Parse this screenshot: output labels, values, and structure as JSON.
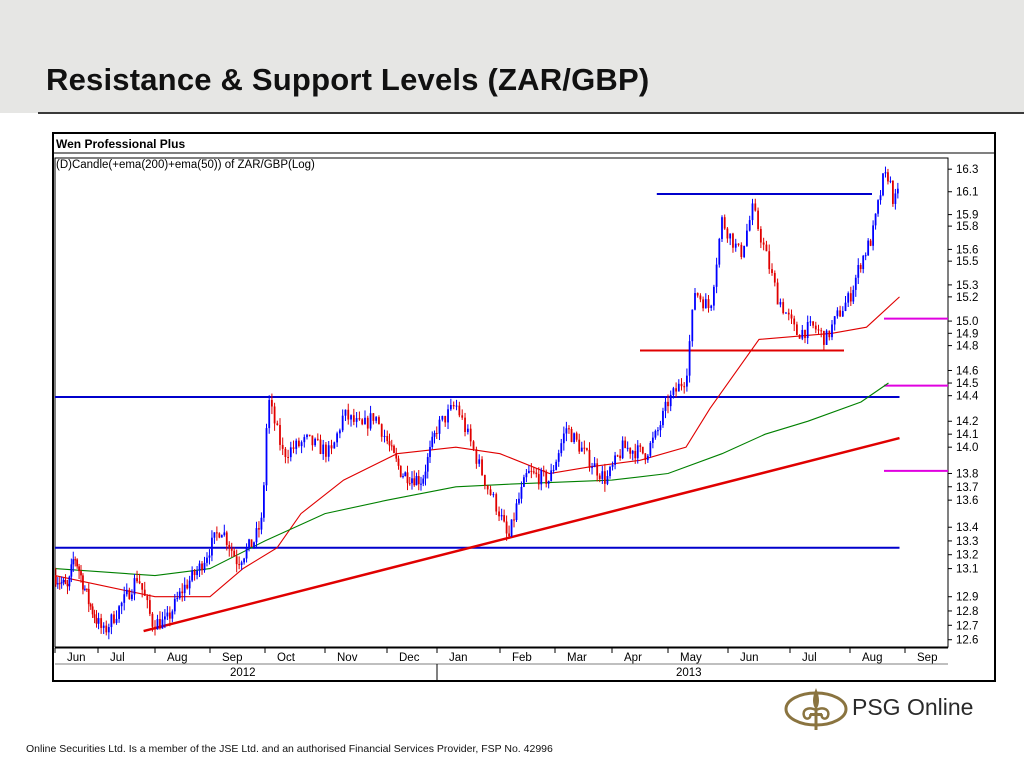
{
  "slide": {
    "title": "Resistance & Support Levels (ZAR/GBP)",
    "footer": "Online Securities Ltd. Is a member of the JSE Ltd. and an authorised Financial Services Provider, FSP No. 42996",
    "logo_text": "PSG Online",
    "colors": {
      "title_band": "#e6e6e4",
      "logo": "#8a7440"
    }
  },
  "chart_data": {
    "type": "line",
    "chart_header": "Wen Professional Plus",
    "subtitle": "(D)Candle(+ema(200)+ema(50)) of ZAR/GBP(Log)",
    "y_scale": "log",
    "ylim": [
      12.55,
      16.4
    ],
    "y_ticks": [
      16.3,
      16.1,
      15.9,
      15.8,
      15.6,
      15.5,
      15.3,
      15.2,
      15.0,
      14.9,
      14.8,
      14.6,
      14.5,
      14.4,
      14.2,
      14.1,
      14.0,
      13.8,
      13.7,
      13.6,
      13.4,
      13.3,
      13.2,
      13.1,
      12.9,
      12.8,
      12.7,
      12.6
    ],
    "x_months": [
      "Jun",
      "Jul",
      "Aug",
      "Sep",
      "Oct",
      "Nov",
      "Dec",
      "Jan",
      "Feb",
      "Mar",
      "Apr",
      "May",
      "Jun",
      "Jul",
      "Aug",
      "Sep"
    ],
    "x_years": [
      "2012",
      "2013"
    ],
    "colors": {
      "up": "#0000ff",
      "down": "#e00000",
      "ema50": "#e00000",
      "ema200": "#008000",
      "resistance": "#0000cc",
      "trend": "#e00000",
      "marker": "#e000e0"
    },
    "series": [
      {
        "name": "ema(50)",
        "values": [
          [
            0,
            13.05
          ],
          [
            2,
            12.9
          ],
          [
            3.0,
            12.9
          ],
          [
            3.6,
            13.1
          ],
          [
            4.2,
            13.25
          ],
          [
            4.6,
            13.5
          ],
          [
            5.3,
            13.75
          ],
          [
            6.2,
            13.95
          ],
          [
            7.3,
            14.0
          ],
          [
            8.0,
            13.95
          ],
          [
            8.9,
            13.8
          ],
          [
            9.6,
            13.85
          ],
          [
            10.5,
            13.9
          ],
          [
            11.3,
            14.0
          ],
          [
            11.7,
            14.3
          ],
          [
            12.5,
            14.85
          ],
          [
            13.7,
            14.9
          ],
          [
            14.3,
            14.95
          ],
          [
            14.9,
            15.2
          ]
        ]
      },
      {
        "name": "ema(200)",
        "values": [
          [
            0,
            13.1
          ],
          [
            2,
            13.05
          ],
          [
            3,
            13.1
          ],
          [
            4,
            13.3
          ],
          [
            5,
            13.5
          ],
          [
            6,
            13.6
          ],
          [
            7.3,
            13.7
          ],
          [
            8.2,
            13.72
          ],
          [
            10,
            13.75
          ],
          [
            11,
            13.8
          ],
          [
            11.9,
            13.95
          ],
          [
            12.6,
            14.1
          ],
          [
            13.3,
            14.2
          ],
          [
            14.2,
            14.35
          ],
          [
            14.7,
            14.5
          ]
        ]
      }
    ],
    "levels": [
      {
        "type": "resistance",
        "value": 14.39,
        "x": [
          0,
          14.9
        ]
      },
      {
        "type": "support",
        "value": 13.25,
        "x": [
          0,
          14.9
        ]
      },
      {
        "type": "resistance",
        "value": 16.08,
        "x": [
          10.8,
          14.4
        ]
      },
      {
        "type": "support",
        "value": 14.76,
        "x": [
          10.5,
          13.9
        ]
      }
    ],
    "trendline": {
      "from": [
        1.8,
        12.66
      ],
      "to": [
        14.9,
        14.07
      ]
    },
    "markers": [
      15.02,
      14.48,
      13.82
    ],
    "price_path": [
      [
        0,
        13.05
      ],
      [
        0.3,
        12.95
      ],
      [
        0.45,
        13.2
      ],
      [
        0.8,
        12.85
      ],
      [
        1.1,
        12.65
      ],
      [
        1.5,
        12.9
      ],
      [
        1.7,
        13.05
      ],
      [
        1.95,
        12.72
      ],
      [
        2.2,
        12.72
      ],
      [
        2.5,
        12.95
      ],
      [
        2.8,
        13.1
      ],
      [
        3.2,
        13.4
      ],
      [
        3.5,
        13.15
      ],
      [
        3.8,
        13.3
      ],
      [
        3.95,
        13.45
      ],
      [
        4.05,
        14.38
      ],
      [
        4.3,
        13.95
      ],
      [
        4.7,
        14.05
      ],
      [
        5.1,
        13.95
      ],
      [
        5.3,
        14.25
      ],
      [
        5.6,
        14.15
      ],
      [
        5.8,
        14.25
      ],
      [
        6.1,
        13.95
      ],
      [
        6.3,
        13.8
      ],
      [
        6.7,
        13.75
      ],
      [
        7.0,
        14.15
      ],
      [
        7.3,
        14.33
      ],
      [
        7.6,
        13.95
      ],
      [
        7.8,
        13.7
      ],
      [
        8.0,
        13.5
      ],
      [
        8.15,
        13.3
      ],
      [
        8.3,
        13.55
      ],
      [
        8.5,
        13.8
      ],
      [
        8.9,
        13.75
      ],
      [
        9.2,
        14.15
      ],
      [
        9.6,
        13.9
      ],
      [
        9.9,
        13.75
      ],
      [
        10.2,
        14.0
      ],
      [
        10.6,
        13.95
      ],
      [
        10.8,
        14.1
      ],
      [
        11.0,
        14.35
      ],
      [
        11.3,
        14.55
      ],
      [
        11.45,
        15.25
      ],
      [
        11.7,
        15.1
      ],
      [
        11.9,
        15.85
      ],
      [
        12.2,
        15.55
      ],
      [
        12.4,
        15.95
      ],
      [
        12.8,
        15.2
      ],
      [
        13.1,
        14.9
      ],
      [
        13.4,
        14.95
      ],
      [
        13.6,
        14.85
      ],
      [
        13.8,
        15.05
      ],
      [
        14.0,
        15.2
      ],
      [
        14.2,
        15.5
      ],
      [
        14.4,
        15.7
      ],
      [
        14.6,
        16.2
      ],
      [
        14.7,
        16.25
      ],
      [
        14.8,
        16.0
      ],
      [
        14.9,
        16.1
      ]
    ]
  }
}
